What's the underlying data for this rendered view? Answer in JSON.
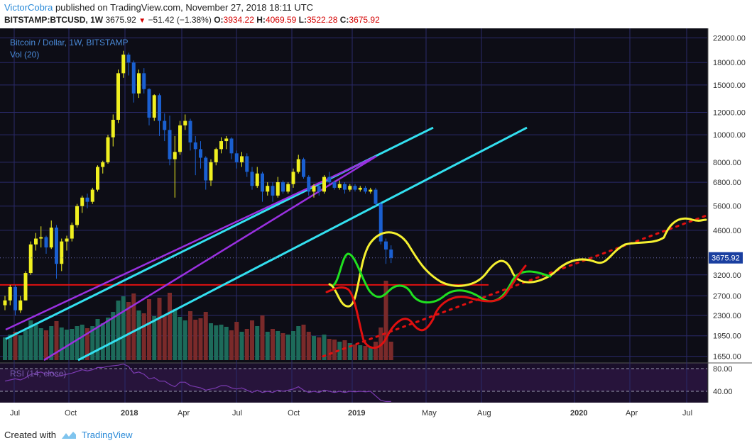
{
  "header": {
    "author": "VictorCobra",
    "published_text": "published on TradingView.com, November 27, 2018 18:11 UTC",
    "symbol": "BITSTAMP:BTCUSD, 1W",
    "last": "3675.92",
    "change": "−51.42 (−1.38%)",
    "o_label": "O:",
    "o_value": "3934.22",
    "h_label": "H:",
    "h_value": "4069.59",
    "l_label": "L:",
    "l_value": "3522.28",
    "c_label": "C:",
    "c_value": "3675.92"
  },
  "legend": {
    "title": "Bitcoin / Dollar, 1W, BITSTAMP",
    "vol": "Vol (20)",
    "rsi": "RSI (14, close)"
  },
  "footer": {
    "created_with": "Created with",
    "brand": "TradingView"
  },
  "colors": {
    "background": "#0d0d16",
    "grid": "#2a2a6a",
    "bull": "#f0f020",
    "bear": "#1a5fd0",
    "vol_bull": "#1d6a5a",
    "vol_bear": "#7a2a2a",
    "cyan": "#33e0f0",
    "purple": "#9a30e0",
    "support": "#e01010",
    "proj_yellow": "#f5f030",
    "proj_green": "#20e020",
    "proj_red": "#e01010",
    "rsi": "#7a3ab0"
  },
  "chart_data": {
    "type": "candlestick",
    "price_scale": "log",
    "y_ticks": [
      22000,
      18000,
      15000,
      12000,
      10000,
      8000,
      6800,
      5600,
      4600,
      3200,
      2700,
      2300,
      1950,
      1650
    ],
    "y_tick_labels": [
      "22000.00",
      "18000.00",
      "15000.00",
      "12000.00",
      "10000.00",
      "8000.00",
      "6800.00",
      "5600.00",
      "4600.00",
      "3200.00",
      "2700.00",
      "2300.00",
      "1950.00",
      "1650.00"
    ],
    "y_range": [
      1600,
      23500
    ],
    "last_price_label": "3675.92",
    "last_price": 3675.92,
    "x_labels": [
      "Jul",
      "Oct",
      "2018",
      "Apr",
      "Jul",
      "Oct",
      "2019",
      "May",
      "Aug",
      "2020",
      "Apr",
      "Jul"
    ],
    "x_label_bold": [
      false,
      false,
      true,
      false,
      false,
      false,
      true,
      false,
      false,
      true,
      false,
      false
    ],
    "rsi_ticks": [
      80,
      40
    ],
    "rsi_tick_labels": [
      "80.00",
      "40.00"
    ],
    "candles": [
      [
        2500,
        2700,
        2400,
        2600
      ],
      [
        2600,
        2950,
        2500,
        2900
      ],
      [
        2900,
        2950,
        2300,
        2400
      ],
      [
        2400,
        2700,
        2350,
        2600
      ],
      [
        2600,
        3300,
        2600,
        3250
      ],
      [
        3250,
        4200,
        3200,
        4100
      ],
      [
        4100,
        4500,
        3900,
        4300
      ],
      [
        4300,
        4750,
        4000,
        4350
      ],
      [
        4350,
        4400,
        3800,
        4000
      ],
      [
        4000,
        4980,
        3950,
        4700
      ],
      [
        4700,
        4800,
        3100,
        3500
      ],
      [
        3500,
        4300,
        3300,
        4200
      ],
      [
        4200,
        4400,
        3900,
        4300
      ],
      [
        4300,
        4900,
        4200,
        4800
      ],
      [
        4800,
        5700,
        4700,
        5600
      ],
      [
        5600,
        6100,
        5300,
        6000
      ],
      [
        6000,
        6200,
        5500,
        5800
      ],
      [
        5800,
        6500,
        5700,
        6400
      ],
      [
        6400,
        7800,
        6300,
        7700
      ],
      [
        7700,
        8100,
        7300,
        8000
      ],
      [
        8000,
        10000,
        7900,
        9800
      ],
      [
        9800,
        11800,
        9100,
        11300
      ],
      [
        11300,
        17000,
        11000,
        16500
      ],
      [
        16500,
        19800,
        15900,
        19200
      ],
      [
        19200,
        19500,
        16200,
        18000
      ],
      [
        18000,
        18300,
        13000,
        14000
      ],
      [
        14000,
        17000,
        13500,
        16500
      ],
      [
        16500,
        17200,
        14000,
        14500
      ],
      [
        14500,
        14600,
        10800,
        11500
      ],
      [
        11500,
        13900,
        11200,
        13800
      ],
      [
        13800,
        14000,
        9900,
        11200
      ],
      [
        11200,
        11900,
        9500,
        10400
      ],
      [
        10400,
        11700,
        7800,
        8200
      ],
      [
        8200,
        9900,
        6000,
        8700
      ],
      [
        8700,
        11200,
        8500,
        10800
      ],
      [
        10800,
        11800,
        10400,
        11200
      ],
      [
        11200,
        11400,
        8800,
        9400
      ],
      [
        9400,
        9900,
        7200,
        8900
      ],
      [
        8900,
        9500,
        7600,
        8300
      ],
      [
        8300,
        8400,
        6400,
        6900
      ],
      [
        6900,
        8200,
        6600,
        8000
      ],
      [
        8000,
        9000,
        7800,
        8900
      ],
      [
        8900,
        9800,
        8600,
        9500
      ],
      [
        9500,
        9900,
        8900,
        9700
      ],
      [
        9700,
        9800,
        8200,
        8600
      ],
      [
        8600,
        8800,
        7600,
        8000
      ],
      [
        8000,
        8700,
        7700,
        8400
      ],
      [
        8400,
        8600,
        7100,
        7400
      ],
      [
        7400,
        7700,
        6400,
        6600
      ],
      [
        6600,
        7700,
        6500,
        7300
      ],
      [
        7300,
        7400,
        5800,
        6300
      ],
      [
        6300,
        6800,
        6100,
        6600
      ],
      [
        6600,
        6800,
        5800,
        6100
      ],
      [
        6100,
        7100,
        6000,
        6800
      ],
      [
        6800,
        6900,
        6200,
        6300
      ],
      [
        6300,
        6800,
        6200,
        6700
      ],
      [
        6700,
        7600,
        6500,
        7400
      ],
      [
        7400,
        8500,
        7300,
        8200
      ],
      [
        8200,
        8300,
        7000,
        7100
      ],
      [
        7100,
        7200,
        6100,
        6300
      ],
      [
        6300,
        6700,
        6000,
        6600
      ],
      [
        6600,
        6700,
        6100,
        6300
      ],
      [
        6300,
        7200,
        6200,
        7100
      ],
      [
        7100,
        7400,
        6700,
        6800
      ],
      [
        6800,
        6900,
        6400,
        6500
      ],
      [
        6500,
        6900,
        6400,
        6700
      ],
      [
        6700,
        6800,
        6200,
        6400
      ],
      [
        6400,
        6700,
        6300,
        6600
      ],
      [
        6600,
        6700,
        6300,
        6400
      ],
      [
        6400,
        6600,
        6300,
        6500
      ],
      [
        6500,
        6600,
        6200,
        6300
      ],
      [
        6300,
        6500,
        6200,
        6400
      ],
      [
        6400,
        6500,
        5600,
        5700
      ],
      [
        5700,
        5800,
        4100,
        4200
      ],
      [
        4200,
        4300,
        3500,
        3934
      ],
      [
        3934,
        4070,
        3522,
        3676
      ]
    ],
    "volumes": [
      3.2,
      3.6,
      4.0,
      3.5,
      4.2,
      5.6,
      5.0,
      4.5,
      4.2,
      4.8,
      5.5,
      4.6,
      4.3,
      4.4,
      4.8,
      5.0,
      4.5,
      4.8,
      5.8,
      5.2,
      6.0,
      6.8,
      8.4,
      9.0,
      8.2,
      9.4,
      7.0,
      6.6,
      8.6,
      6.2,
      8.8,
      6.4,
      9.5,
      7.2,
      6.1,
      5.6,
      6.9,
      5.7,
      5.9,
      6.8,
      5.2,
      4.9,
      5.0,
      4.7,
      4.2,
      5.4,
      4.0,
      4.4,
      5.6,
      4.8,
      6.3,
      4.0,
      4.4,
      4.1,
      3.8,
      3.6,
      4.1,
      4.8,
      5.0,
      4.0,
      3.4,
      3.2,
      3.6,
      3.0,
      2.9,
      2.6,
      2.8,
      2.4,
      2.2,
      2.1,
      2.0,
      1.8,
      2.6,
      4.6,
      11.2,
      2.6
    ],
    "rsi": [
      58,
      60,
      62,
      60,
      64,
      70,
      72,
      74,
      70,
      74,
      66,
      68,
      70,
      72,
      75,
      78,
      76,
      78,
      82,
      82,
      84,
      85,
      86,
      88,
      84,
      72,
      74,
      70,
      62,
      64,
      58,
      58,
      52,
      48,
      56,
      56,
      50,
      48,
      46,
      42,
      44,
      46,
      50,
      50,
      46,
      44,
      46,
      42,
      38,
      42,
      38,
      40,
      38,
      42,
      40,
      42,
      44,
      48,
      42,
      38,
      40,
      38,
      42,
      40,
      38,
      40,
      38,
      40,
      39,
      40,
      39,
      40,
      32,
      24,
      22,
      22
    ],
    "overlays": {
      "cyan_channel_upper": [
        [
          1515004800000,
          1800
        ],
        [
          1551398400000,
          10500
        ]
      ],
      "cyan_channel_lower": [
        [
          1514764800000,
          1600
        ],
        [
          1553817600000,
          10500
        ]
      ],
      "purple_fan_upper": [
        [
          1514764800000,
          1850
        ],
        [
          1549929600000,
          8400
        ]
      ],
      "purple_fan_lower": [
        [
          1514764800000,
          1600
        ],
        [
          1549929600000,
          8400
        ]
      ],
      "support_line": 2950,
      "dotted_trend": [
        [
          1546300800000,
          1650
        ],
        [
          1596240000000,
          5200
        ]
      ],
      "projection_series": [
        "yellow",
        "green",
        "red"
      ]
    }
  }
}
